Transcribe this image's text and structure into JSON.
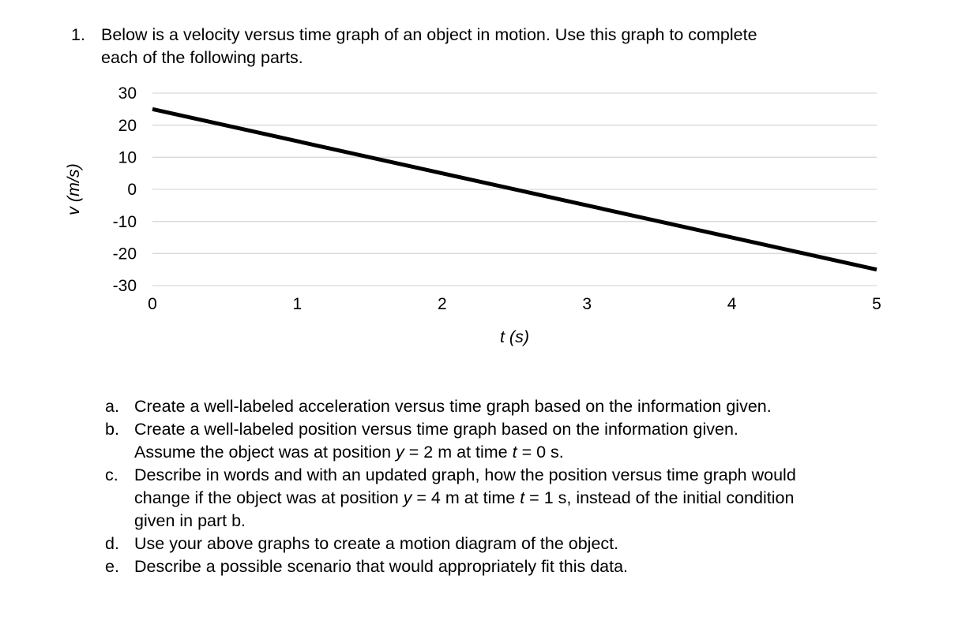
{
  "question": {
    "number": "1.",
    "lines": [
      "Below is a velocity versus time graph of an object in motion. Use this graph to complete",
      "each of the following parts."
    ]
  },
  "chart_data": {
    "type": "line",
    "title": "",
    "xlabel": "t (s)",
    "ylabel": "v (m/s)",
    "x": [
      0,
      5
    ],
    "y": [
      25,
      -25
    ],
    "xlim": [
      0,
      5
    ],
    "ylim": [
      -30,
      30
    ],
    "xticks": [
      0,
      1,
      2,
      3,
      4,
      5
    ],
    "yticks": [
      30,
      20,
      10,
      0,
      -10,
      -20,
      -30
    ],
    "grid": "horizontal-only",
    "legend": "none",
    "line_color": "#000000",
    "grid_color": "#d9d9d9",
    "background": "#ffffff",
    "slope_m_per_s2": -10,
    "v_at_t0": 25,
    "v_at_t5": -25
  },
  "parts": [
    {
      "label": "a.",
      "lines": [
        [
          {
            "t": "Create a well-labeled acceleration versus time graph based on the information given."
          }
        ]
      ]
    },
    {
      "label": "b.",
      "lines": [
        [
          {
            "t": "Create a well-labeled position versus time graph based on the information given."
          }
        ],
        [
          {
            "t": "Assume the object was at position "
          },
          {
            "t": "y",
            "i": true
          },
          {
            "t": " = 2 m at time "
          },
          {
            "t": "t",
            "i": true
          },
          {
            "t": " = 0 s."
          }
        ]
      ]
    },
    {
      "label": "c.",
      "lines": [
        [
          {
            "t": "Describe in words and with an updated graph, how the position versus time graph would"
          }
        ],
        [
          {
            "t": "change if the object was at position "
          },
          {
            "t": "y",
            "i": true
          },
          {
            "t": " = 4 m at time "
          },
          {
            "t": "t",
            "i": true
          },
          {
            "t": " = 1 s, instead of the initial condition"
          }
        ],
        [
          {
            "t": "given in part b."
          }
        ]
      ]
    },
    {
      "label": "d.",
      "lines": [
        [
          {
            "t": "Use your above graphs to create a motion diagram of the object."
          }
        ]
      ]
    },
    {
      "label": "e.",
      "lines": [
        [
          {
            "t": "Describe a possible scenario that would appropriately fit this data."
          }
        ]
      ]
    }
  ]
}
